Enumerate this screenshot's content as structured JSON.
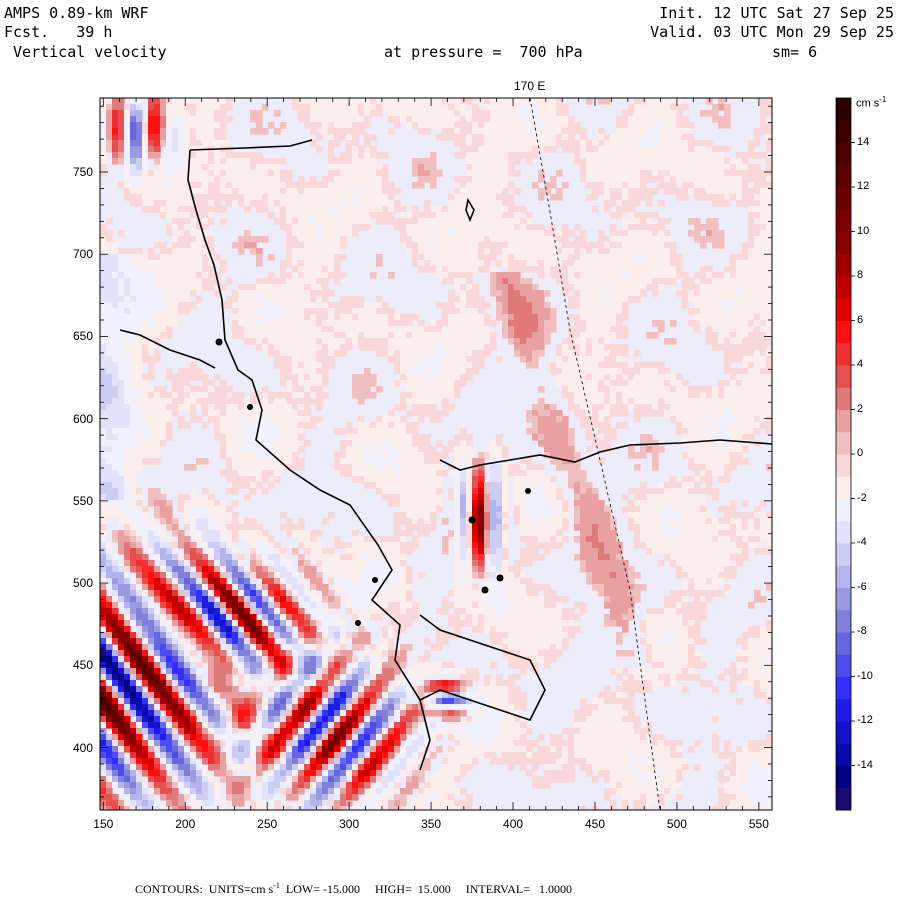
{
  "header": {
    "model": "AMPS 0.89-km WRF",
    "forecast": "Fcst.   39 h",
    "field": " Vertical velocity",
    "init": "Init. 12 UTC Sat 27 Sep 25",
    "valid": "Valid. 03 UTC Mon 29 Sep 25",
    "level": "at pressure =  700 hPa",
    "smoothing": "sm= 6"
  },
  "meridian_label": "170 E",
  "colorbar": {
    "units_base": "cm s",
    "units_exp": "-1",
    "tick_labels": [
      "14",
      "12",
      "10",
      "8",
      "6",
      "4",
      "2",
      "0",
      "-2",
      "-4",
      "-6",
      "-8",
      "-10",
      "-12",
      "-14"
    ],
    "colors": [
      "#1a0a6e",
      "#000080",
      "#0a0aa6",
      "#1212c8",
      "#1c1ce6",
      "#3030ff",
      "#4c4cf0",
      "#6666e0",
      "#8080d8",
      "#9a9ae0",
      "#b4b4ec",
      "#ccccf4",
      "#e2e2fa",
      "#f0f0fe",
      "#fdeeee",
      "#f8d8d8",
      "#f0c0c0",
      "#e8a0a0",
      "#e07a7a",
      "#e85050",
      "#f03030",
      "#ff1010",
      "#e00000",
      "#c00000",
      "#a00000",
      "#8a0000",
      "#7a0000",
      "#6a0000",
      "#5a0000",
      "#4a0000",
      "#3a0000",
      "#2a0000"
    ]
  },
  "footer": "CONTOURS:  UNITS=cm s",
  "footer_exp": "-1",
  "footer_rest": "  LOW= -15.000     HIGH=  15.000     INTERVAL=   1.0000",
  "chart_data": {
    "type": "heatmap",
    "title": "Vertical velocity",
    "variable": "Vertical velocity",
    "units": "cm s-1",
    "pressure_level_hPa": 700,
    "x_ticks": [
      150,
      200,
      250,
      300,
      350,
      400,
      450,
      500,
      550
    ],
    "y_ticks": [
      400,
      450,
      500,
      550,
      600,
      650,
      700,
      750
    ],
    "xlim": [
      148,
      558
    ],
    "ylim": [
      362,
      795
    ],
    "color_scale": {
      "low": -15,
      "high": 15,
      "interval": 1
    },
    "colorbar_ticks": [
      14,
      12,
      10,
      8,
      6,
      4,
      2,
      0,
      -2,
      -4,
      -6,
      -8,
      -10,
      -12,
      -14
    ],
    "grid": false,
    "legend": "right colorbar",
    "pattern": "near-zero (light lavender) over most of domain; intense alternating updrafts/downdrafts (dark red / dark blue) over terrain in lower-left; moderate positive band (pink) running diagonally near x 380-460; strong couplets near x 370-390, y 430-580"
  }
}
